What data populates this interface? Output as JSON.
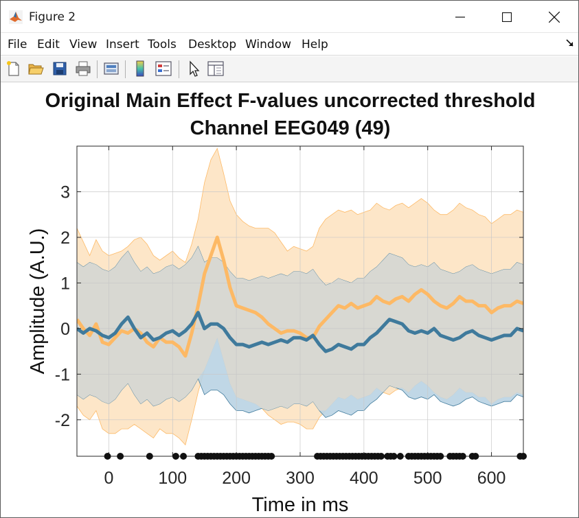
{
  "window": {
    "title": "Figure 2",
    "icon": "matlab-icon",
    "controls": [
      "minimize-icon",
      "maximize-icon",
      "close-icon"
    ]
  },
  "menu": {
    "items": [
      "File",
      "Edit",
      "View",
      "Insert",
      "Tools",
      "Desktop",
      "Window",
      "Help"
    ],
    "dock_icon": "dock-arrow-icon"
  },
  "toolbar": {
    "icons": [
      "new-figure-icon",
      "open-file-icon",
      "save-icon",
      "print-icon",
      "link-plot-icon",
      "colorbar-icon",
      "legend-icon",
      "pointer-icon",
      "property-inspector-icon"
    ]
  },
  "chart_data": {
    "type": "line",
    "title_line1": "Original Main Effect F-values uncorrected threshold",
    "title_line2": "Channel EEG049 (49)",
    "xlabel": "Time in ms",
    "ylabel": "Amplitude (A.U.)",
    "xlim": [
      -50,
      650
    ],
    "ylim": [
      -2.8,
      4.0
    ],
    "xticks": [
      0,
      100,
      200,
      300,
      400,
      500,
      600
    ],
    "yticks": [
      -2,
      -1,
      0,
      1,
      2,
      3
    ],
    "grid": true,
    "colors": {
      "orange_line": "#fdb965",
      "orange_band": "#fde6c8",
      "blue_line": "#3f7a9c",
      "blue_band": "#b9d3e3",
      "overlap_band": "#d8d8d2",
      "markers": "#111111"
    },
    "series": [
      {
        "color": "orange",
        "x": [
          -50,
          -40,
          -30,
          -20,
          -10,
          0,
          10,
          20,
          30,
          40,
          50,
          60,
          70,
          80,
          90,
          100,
          110,
          120,
          130,
          140,
          150,
          160,
          170,
          180,
          190,
          200,
          210,
          220,
          230,
          240,
          250,
          260,
          270,
          280,
          290,
          300,
          310,
          320,
          330,
          340,
          350,
          360,
          370,
          380,
          390,
          400,
          410,
          420,
          430,
          440,
          450,
          460,
          470,
          480,
          490,
          500,
          510,
          520,
          530,
          540,
          550,
          560,
          570,
          580,
          590,
          600,
          610,
          620,
          630,
          640,
          650
        ],
        "mean": [
          0.2,
          0.0,
          -0.15,
          0.1,
          -0.3,
          -0.35,
          -0.2,
          -0.05,
          -0.1,
          0.0,
          -0.1,
          -0.3,
          -0.4,
          -0.2,
          -0.3,
          -0.3,
          -0.4,
          -0.6,
          -0.1,
          0.5,
          1.2,
          1.6,
          2.0,
          1.5,
          0.9,
          0.5,
          0.45,
          0.4,
          0.35,
          0.25,
          0.1,
          0.0,
          -0.1,
          -0.05,
          -0.05,
          -0.1,
          -0.2,
          -0.2,
          0.05,
          0.2,
          0.35,
          0.5,
          0.45,
          0.55,
          0.45,
          0.5,
          0.55,
          0.7,
          0.6,
          0.55,
          0.65,
          0.7,
          0.6,
          0.75,
          0.85,
          0.75,
          0.6,
          0.5,
          0.45,
          0.55,
          0.7,
          0.6,
          0.6,
          0.5,
          0.5,
          0.35,
          0.45,
          0.5,
          0.5,
          0.6,
          0.55
        ],
        "upper": [
          2.2,
          1.9,
          1.6,
          1.95,
          1.7,
          1.6,
          1.65,
          1.7,
          1.8,
          1.95,
          2.0,
          1.85,
          1.6,
          1.5,
          1.6,
          1.7,
          1.55,
          1.45,
          1.85,
          2.4,
          3.2,
          3.7,
          3.95,
          3.4,
          2.8,
          2.5,
          2.35,
          2.25,
          2.2,
          2.2,
          2.2,
          2.1,
          1.9,
          1.7,
          1.8,
          1.75,
          1.7,
          1.8,
          2.2,
          2.4,
          2.5,
          2.6,
          2.55,
          2.6,
          2.5,
          2.55,
          2.6,
          2.75,
          2.65,
          2.6,
          2.7,
          2.75,
          2.65,
          2.75,
          2.85,
          2.75,
          2.6,
          2.5,
          2.5,
          2.6,
          2.75,
          2.65,
          2.6,
          2.5,
          2.45,
          2.3,
          2.4,
          2.5,
          2.5,
          2.6,
          2.55
        ],
        "lower": [
          -1.7,
          -1.9,
          -2.0,
          -1.8,
          -2.2,
          -2.3,
          -2.3,
          -2.2,
          -2.2,
          -2.1,
          -2.2,
          -2.3,
          -2.4,
          -2.2,
          -2.3,
          -2.3,
          -2.4,
          -2.55,
          -2.0,
          -1.4,
          -0.9,
          -0.55,
          -0.2,
          -0.7,
          -1.2,
          -1.5,
          -1.55,
          -1.6,
          -1.65,
          -1.75,
          -1.9,
          -2.0,
          -2.1,
          -2.05,
          -2.05,
          -2.1,
          -2.2,
          -2.2,
          -1.95,
          -1.8,
          -1.65,
          -1.5,
          -1.55,
          -1.45,
          -1.55,
          -1.5,
          -1.45,
          -1.3,
          -1.4,
          -1.45,
          -1.35,
          -1.3,
          -1.4,
          -1.25,
          -1.15,
          -1.25,
          -1.4,
          -1.5,
          -1.55,
          -1.45,
          -1.3,
          -1.4,
          -1.4,
          -1.5,
          -1.5,
          -1.65,
          -1.55,
          -1.5,
          -1.5,
          -1.4,
          -1.45
        ]
      },
      {
        "color": "blue",
        "x": [
          -50,
          -40,
          -30,
          -20,
          -10,
          0,
          10,
          20,
          30,
          40,
          50,
          60,
          70,
          80,
          90,
          100,
          110,
          120,
          130,
          140,
          150,
          160,
          170,
          180,
          190,
          200,
          210,
          220,
          230,
          240,
          250,
          260,
          270,
          280,
          290,
          300,
          310,
          320,
          330,
          340,
          350,
          360,
          370,
          380,
          390,
          400,
          410,
          420,
          430,
          440,
          450,
          460,
          470,
          480,
          490,
          500,
          510,
          520,
          530,
          540,
          550,
          560,
          570,
          580,
          590,
          600,
          610,
          620,
          630,
          640,
          650
        ],
        "mean": [
          0.0,
          -0.1,
          0.0,
          -0.05,
          -0.15,
          -0.2,
          -0.1,
          0.1,
          0.25,
          0.0,
          -0.2,
          -0.1,
          -0.25,
          -0.2,
          -0.1,
          -0.05,
          -0.15,
          -0.05,
          0.1,
          0.35,
          0.0,
          0.1,
          0.1,
          0.0,
          -0.2,
          -0.35,
          -0.35,
          -0.4,
          -0.35,
          -0.3,
          -0.35,
          -0.3,
          -0.25,
          -0.3,
          -0.2,
          -0.2,
          -0.25,
          -0.15,
          -0.35,
          -0.5,
          -0.45,
          -0.35,
          -0.4,
          -0.45,
          -0.35,
          -0.35,
          -0.2,
          -0.1,
          0.05,
          0.2,
          0.15,
          0.1,
          -0.05,
          -0.1,
          -0.05,
          -0.1,
          0.0,
          -0.15,
          -0.2,
          -0.25,
          -0.2,
          -0.1,
          -0.05,
          -0.15,
          -0.2,
          -0.25,
          -0.2,
          -0.15,
          -0.15,
          0.0,
          -0.05
        ],
        "upper": [
          1.45,
          1.35,
          1.45,
          1.4,
          1.3,
          1.25,
          1.35,
          1.55,
          1.7,
          1.45,
          1.25,
          1.35,
          1.2,
          1.25,
          1.35,
          1.4,
          1.3,
          1.4,
          1.55,
          1.8,
          1.45,
          1.55,
          1.55,
          1.45,
          1.25,
          1.1,
          1.1,
          1.05,
          1.1,
          1.15,
          1.1,
          1.15,
          1.2,
          1.15,
          1.25,
          1.25,
          1.2,
          1.3,
          1.1,
          0.95,
          1.0,
          1.1,
          1.05,
          1.0,
          1.1,
          1.1,
          1.25,
          1.35,
          1.5,
          1.65,
          1.6,
          1.55,
          1.4,
          1.35,
          1.4,
          1.35,
          1.45,
          1.3,
          1.25,
          1.2,
          1.25,
          1.35,
          1.4,
          1.3,
          1.25,
          1.2,
          1.25,
          1.3,
          1.3,
          1.45,
          1.4
        ],
        "lower": [
          -1.45,
          -1.55,
          -1.45,
          -1.5,
          -1.6,
          -1.65,
          -1.55,
          -1.35,
          -1.2,
          -1.45,
          -1.65,
          -1.55,
          -1.7,
          -1.65,
          -1.55,
          -1.5,
          -1.6,
          -1.5,
          -1.35,
          -1.1,
          -1.45,
          -1.35,
          -1.35,
          -1.45,
          -1.65,
          -1.8,
          -1.8,
          -1.85,
          -1.8,
          -1.75,
          -1.8,
          -1.75,
          -1.7,
          -1.75,
          -1.65,
          -1.65,
          -1.7,
          -1.6,
          -1.8,
          -1.95,
          -1.9,
          -1.8,
          -1.85,
          -1.9,
          -1.8,
          -1.8,
          -1.65,
          -1.55,
          -1.4,
          -1.25,
          -1.3,
          -1.35,
          -1.5,
          -1.55,
          -1.5,
          -1.55,
          -1.45,
          -1.6,
          -1.65,
          -1.7,
          -1.65,
          -1.55,
          -1.5,
          -1.6,
          -1.65,
          -1.7,
          -1.65,
          -1.6,
          -1.6,
          -1.45,
          -1.5
        ]
      }
    ],
    "significance_markers": [
      -2,
      18,
      64,
      105,
      117,
      140,
      145,
      150,
      155,
      160,
      165,
      170,
      175,
      180,
      185,
      190,
      195,
      200,
      205,
      210,
      215,
      220,
      225,
      230,
      235,
      240,
      245,
      250,
      255,
      327,
      332,
      337,
      342,
      347,
      352,
      357,
      362,
      367,
      372,
      377,
      382,
      387,
      392,
      397,
      402,
      407,
      412,
      417,
      422,
      427,
      437,
      442,
      447,
      457,
      470,
      475,
      480,
      485,
      490,
      495,
      500,
      505,
      510,
      515,
      520,
      535,
      540,
      545,
      550,
      555,
      570,
      575,
      645,
      650
    ]
  }
}
